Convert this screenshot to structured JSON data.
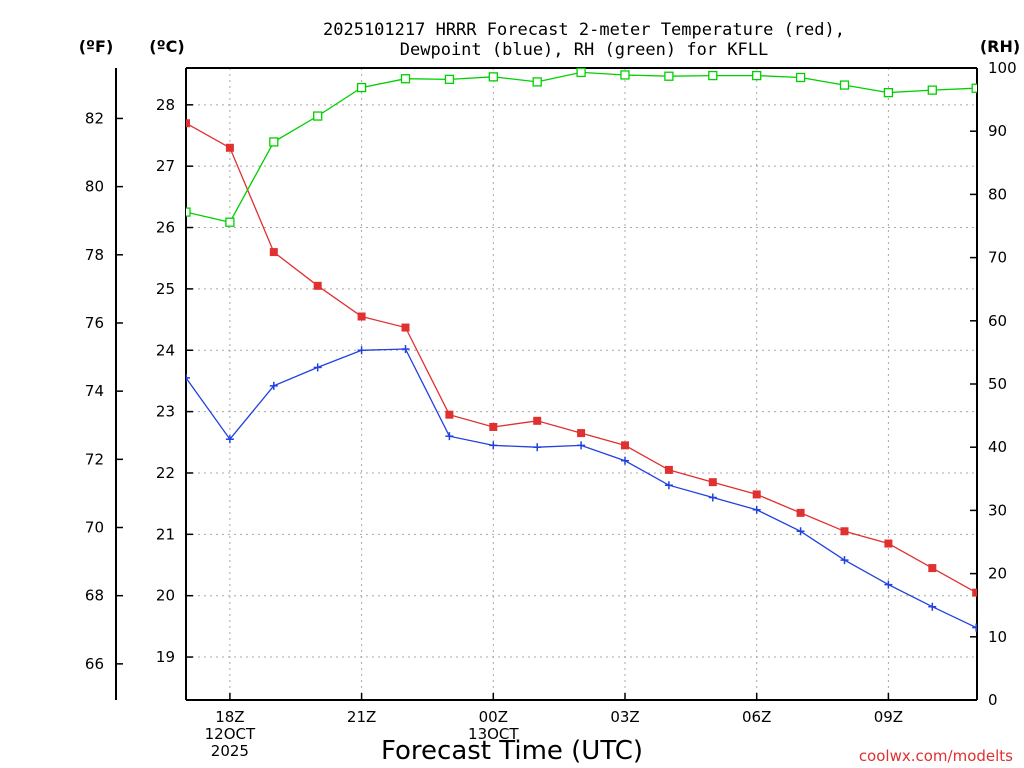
{
  "title_lines": [
    "2025101217 HRRR Forecast 2-meter Temperature (red),",
    "Dewpoint (blue), RH (green) for KFLL"
  ],
  "units": {
    "fahrenheit": "(ºF)",
    "celsius": "(ºC)",
    "rh": "(RH)"
  },
  "xlabel": "Forecast Time (UTC)",
  "credit": "coolwx.com/modelts",
  "colors": {
    "temperature": "#e03030",
    "dewpoint": "#2040e0",
    "rh": "#00d000",
    "grid": "#a8a8a8"
  },
  "chart_data": {
    "type": "line",
    "x": [
      "17Z",
      "18Z",
      "19Z",
      "20Z",
      "21Z",
      "22Z",
      "23Z",
      "00Z",
      "01Z",
      "02Z",
      "03Z",
      "04Z",
      "05Z",
      "06Z",
      "07Z",
      "08Z",
      "09Z",
      "10Z",
      "11Z"
    ],
    "x_tick_labels": [
      {
        "x": "18Z",
        "lines": [
          "18Z",
          "12OCT",
          "2025"
        ]
      },
      {
        "x": "21Z",
        "lines": [
          "21Z"
        ]
      },
      {
        "x": "00Z",
        "lines": [
          "00Z",
          "13OCT"
        ]
      },
      {
        "x": "03Z",
        "lines": [
          "03Z"
        ]
      },
      {
        "x": "06Z",
        "lines": [
          "06Z"
        ]
      },
      {
        "x": "09Z",
        "lines": [
          "09Z"
        ]
      }
    ],
    "axes": {
      "celsius": {
        "range": [
          18.3,
          28.6
        ],
        "ticks": [
          19,
          20,
          21,
          22,
          23,
          24,
          25,
          26,
          27,
          28
        ]
      },
      "fahrenheit": {
        "range": [
          64.94,
          83.48
        ],
        "ticks": [
          66,
          68,
          70,
          72,
          74,
          76,
          78,
          80,
          82
        ]
      },
      "rh": {
        "range": [
          0,
          100
        ],
        "ticks": [
          0,
          10,
          20,
          30,
          40,
          50,
          60,
          70,
          80,
          90,
          100
        ]
      }
    },
    "grid": true,
    "series": [
      {
        "key": "temperature",
        "axis": "celsius",
        "marker": "filled-square",
        "values": [
          27.7,
          27.3,
          25.6,
          25.05,
          24.55,
          24.37,
          22.95,
          22.75,
          22.85,
          22.65,
          22.45,
          22.05,
          21.85,
          21.65,
          21.35,
          21.05,
          20.85,
          20.45,
          20.05
        ]
      },
      {
        "key": "dewpoint",
        "axis": "celsius",
        "marker": "plus",
        "values": [
          23.55,
          22.55,
          23.42,
          23.72,
          24.0,
          24.02,
          22.6,
          22.45,
          22.42,
          22.45,
          22.2,
          21.8,
          21.6,
          21.4,
          21.05,
          20.58,
          20.18,
          19.82,
          19.48
        ]
      },
      {
        "key": "rh",
        "axis": "rh",
        "marker": "open-square",
        "values": [
          77.2,
          75.6,
          88.3,
          92.4,
          96.9,
          98.3,
          98.2,
          98.6,
          97.8,
          99.3,
          98.9,
          98.7,
          98.8,
          98.8,
          98.5,
          97.3,
          96.1,
          96.5,
          96.8
        ]
      }
    ]
  }
}
